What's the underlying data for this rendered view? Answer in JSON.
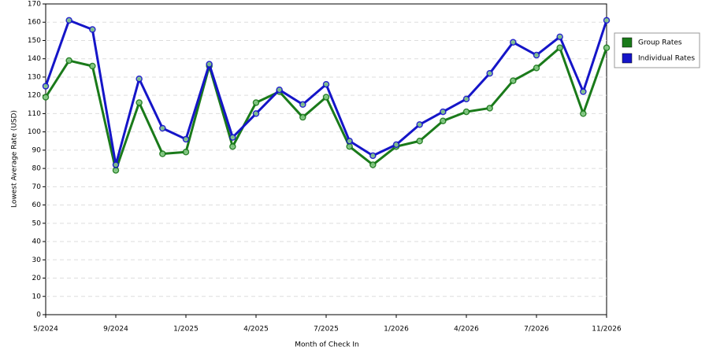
{
  "chart_data": {
    "type": "line",
    "x_label": "Month of Check In",
    "y_label": "Lowest Average Rate (USD)",
    "categories": [
      "5/2024",
      null,
      null,
      "9/2024",
      null,
      null,
      "1/2025",
      null,
      null,
      "4/2025",
      null,
      null,
      "7/2025",
      null,
      null,
      "1/2026",
      null,
      null,
      "4/2026",
      null,
      null,
      "7/2026",
      null,
      null,
      "11/2026"
    ],
    "series": [
      {
        "name": "Group Rates",
        "color": "#1a7a1a",
        "values": [
          119,
          139,
          136,
          79,
          116,
          88,
          89,
          136,
          92,
          116,
          122,
          108,
          119,
          92,
          82,
          92,
          95,
          106,
          111,
          113,
          128,
          135,
          146,
          110,
          146
        ]
      },
      {
        "name": "Individual Rates",
        "color": "#1515c8",
        "values": [
          125,
          161,
          156,
          82,
          129,
          102,
          96,
          137,
          97,
          110,
          123,
          115,
          126,
          95,
          87,
          93,
          104,
          111,
          118,
          132,
          149,
          142,
          152,
          122,
          161
        ]
      }
    ],
    "ylim": [
      0,
      170
    ],
    "yticks": [
      0,
      10,
      20,
      30,
      40,
      50,
      60,
      70,
      80,
      90,
      100,
      110,
      120,
      130,
      140,
      150,
      160,
      170
    ],
    "grid": true,
    "legend": "right"
  }
}
